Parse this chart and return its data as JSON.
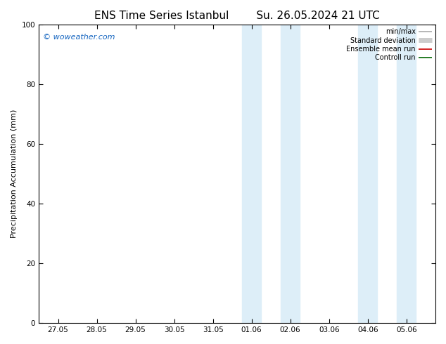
{
  "title": "ENS Time Series Istanbul",
  "title2": "Su. 26.05.2024 21 UTC",
  "ylabel": "Precipitation Accumulation (mm)",
  "ylim": [
    0,
    100
  ],
  "yticks": [
    0,
    20,
    40,
    60,
    80,
    100
  ],
  "xtick_labels": [
    "27.05",
    "28.05",
    "29.05",
    "30.05",
    "31.05",
    "01.06",
    "02.06",
    "03.06",
    "04.06",
    "05.06"
  ],
  "xtick_positions": [
    0,
    1,
    2,
    3,
    4,
    5,
    6,
    7,
    8,
    9
  ],
  "xlim": [
    -0.5,
    9.75
  ],
  "shaded_regions": [
    {
      "xmin": 4.75,
      "xmax": 5.25,
      "color": "#ddeef8"
    },
    {
      "xmin": 5.75,
      "xmax": 6.25,
      "color": "#ddeef8"
    },
    {
      "xmin": 7.75,
      "xmax": 8.25,
      "color": "#ddeef8"
    },
    {
      "xmin": 8.75,
      "xmax": 9.25,
      "color": "#ddeef8"
    }
  ],
  "watermark": "© woweather.com",
  "watermark_color": "#1565c0",
  "watermark_fontsize": 8,
  "background_color": "#ffffff",
  "legend_items": [
    {
      "label": "min/max",
      "color": "#aaaaaa",
      "lw": 1.2
    },
    {
      "label": "Standard deviation",
      "color": "#cccccc",
      "lw": 5
    },
    {
      "label": "Ensemble mean run",
      "color": "#cc0000",
      "lw": 1.2
    },
    {
      "label": "Controll run",
      "color": "#006600",
      "lw": 1.2
    }
  ],
  "title_fontsize": 11,
  "axis_fontsize": 8,
  "tick_fontsize": 7.5
}
